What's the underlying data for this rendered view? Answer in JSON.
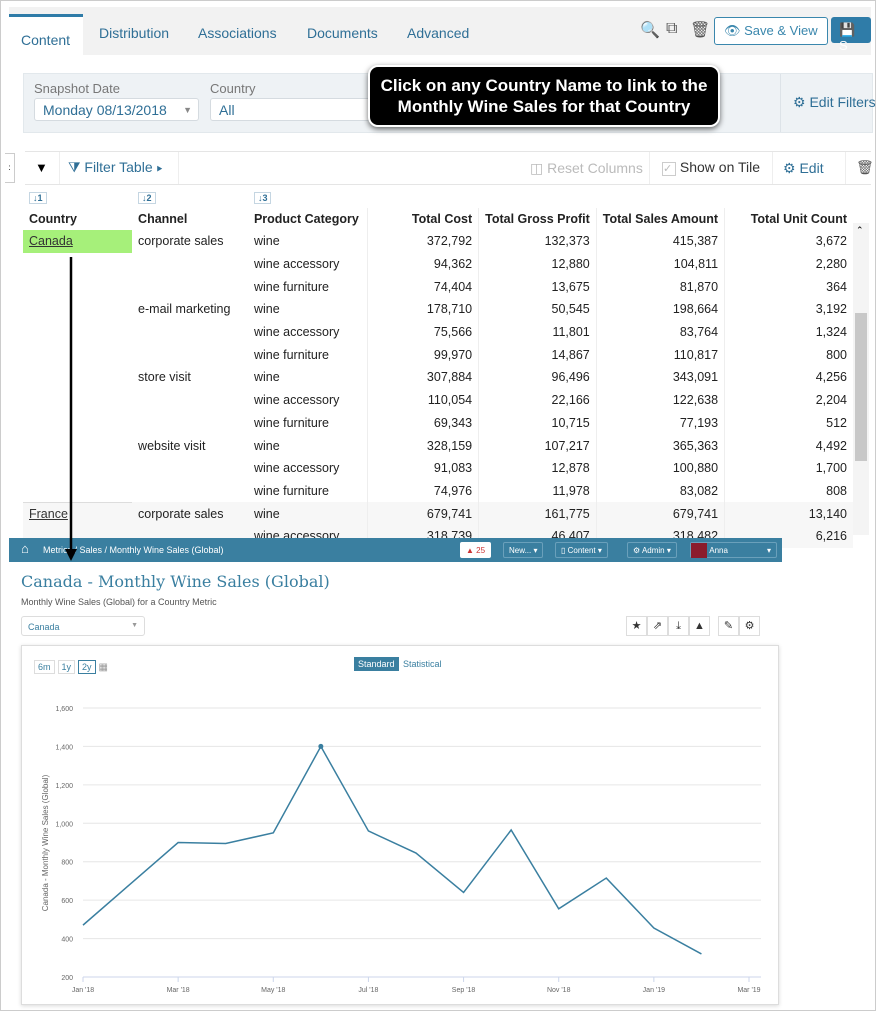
{
  "tabs": [
    "Content",
    "Distribution",
    "Associations",
    "Documents",
    "Advanced"
  ],
  "toolbar": {
    "save_view": "Save & View",
    "save": "S",
    "icons": [
      "search-icon",
      "copy-icon",
      "trash-icon",
      "eye-icon",
      "save-icon"
    ]
  },
  "filters": {
    "snapshot_label": "Snapshot Date",
    "snapshot_value": "Monday 08/13/2018",
    "country_label": "Country",
    "country_value": "All",
    "edit_filters": "Edit Filters"
  },
  "tooltip": "Click on any Country Name to link to the Monthly Wine Sales for that Country",
  "table_toolbar": {
    "filter_table": "Filter Table",
    "reset_columns": "Reset Columns",
    "show_on_tile": "Show on Tile",
    "edit": "Edit"
  },
  "table": {
    "sort_badges": [
      "↓1",
      "↓2",
      "↓3"
    ],
    "columns": [
      "Country",
      "Channel",
      "Product Category",
      "Total Cost",
      "Total Gross Profit",
      "Total Sales Amount",
      "Total Unit Count"
    ],
    "rows": [
      [
        "Canada",
        "corporate sales",
        "wine",
        "372,792",
        "132,373",
        "415,387",
        "3,672"
      ],
      [
        "",
        "",
        "wine accessory",
        "94,362",
        "12,880",
        "104,811",
        "2,280"
      ],
      [
        "",
        "",
        "wine furniture",
        "74,404",
        "13,675",
        "81,870",
        "364"
      ],
      [
        "",
        "e-mail marketing",
        "wine",
        "178,710",
        "50,545",
        "198,664",
        "3,192"
      ],
      [
        "",
        "",
        "wine accessory",
        "75,566",
        "11,801",
        "83,764",
        "1,324"
      ],
      [
        "",
        "",
        "wine furniture",
        "99,970",
        "14,867",
        "110,817",
        "800"
      ],
      [
        "",
        "store visit",
        "wine",
        "307,884",
        "96,496",
        "343,091",
        "4,256"
      ],
      [
        "",
        "",
        "wine accessory",
        "110,054",
        "22,166",
        "122,638",
        "2,204"
      ],
      [
        "",
        "",
        "wine furniture",
        "69,343",
        "10,715",
        "77,193",
        "512"
      ],
      [
        "",
        "website visit",
        "wine",
        "328,159",
        "107,217",
        "365,363",
        "4,492"
      ],
      [
        "",
        "",
        "wine accessory",
        "91,083",
        "12,878",
        "100,880",
        "1,700"
      ],
      [
        "",
        "",
        "wine furniture",
        "74,976",
        "11,978",
        "83,082",
        "808"
      ],
      [
        "France",
        "corporate sales",
        "wine",
        "679,741",
        "161,775",
        "679,741",
        "13,140"
      ],
      [
        "",
        "",
        "wine accessory",
        "318,739",
        "46,407",
        "318,482",
        "6,216"
      ]
    ],
    "highlight_color": "#a6f07a"
  },
  "metric_page": {
    "breadcrumb": "Metrics / Sales / Monthly Wine Sales (Global)",
    "alerts": "25",
    "new": "New...",
    "content": "Content",
    "admin": "Admin",
    "user": "Anna",
    "title": "Canada - Monthly Wine Sales (Global)",
    "subtitle": "Monthly Wine Sales (Global) for a Country Metric",
    "selector": "Canada",
    "ranges": [
      "6m",
      "1y",
      "2y"
    ],
    "views": [
      "Standard",
      "Statistical"
    ],
    "accent": "#3a7fa0"
  },
  "chart_data": {
    "type": "line",
    "ylabel": "Canada - Monthly Wine Sales (Global)",
    "xlabel": "",
    "x": [
      "Jan '18",
      "Feb '18",
      "Mar '18",
      "Apr '18",
      "May '18",
      "Jun '18",
      "Jul '18",
      "Aug '18",
      "Sep '18",
      "Oct '18",
      "Nov '18",
      "Dec '18",
      "Jan '19",
      "Feb '19"
    ],
    "values": [
      470,
      685,
      900,
      895,
      950,
      1400,
      960,
      845,
      640,
      965,
      555,
      715,
      455,
      320
    ],
    "x_ticks": [
      "Jan '18",
      "Mar '18",
      "May '18",
      "Jul '18",
      "Sep '18",
      "Nov '18",
      "Jan '19",
      "Mar '19"
    ],
    "y_ticks": [
      "200",
      "400",
      "600",
      "800",
      "1,000",
      "1,200",
      "1,400",
      "1,600"
    ],
    "ylim": [
      200,
      1600
    ],
    "grid": true,
    "color": "#3a7fa0"
  }
}
